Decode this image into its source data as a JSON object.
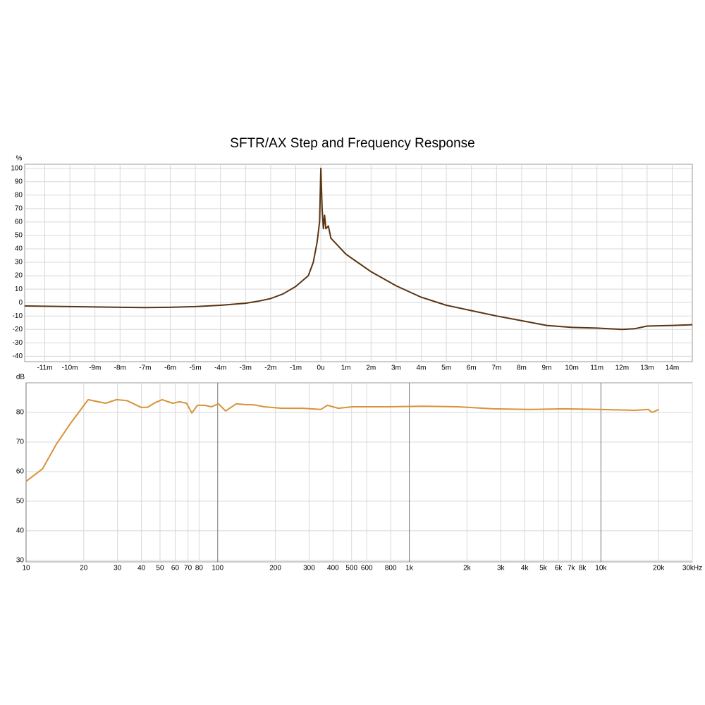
{
  "chart_data": [
    {
      "type": "line",
      "title": "SFTR/AX Step and Frequency Response",
      "ylabel": "%",
      "color": "#5a3413",
      "x": [
        -11.8,
        -10,
        -8,
        -7,
        -6,
        -5,
        -4,
        -3,
        -2.5,
        -2,
        -1.5,
        -1,
        -0.5,
        -0.3,
        -0.15,
        -0.05,
        0,
        0.05,
        0.1,
        0.15,
        0.2,
        0.3,
        0.4,
        0.6,
        1,
        1.5,
        2,
        3,
        4,
        5,
        6,
        7,
        8,
        9,
        10,
        11,
        12,
        12.5,
        13,
        14,
        14.8
      ],
      "values": [
        -2.5,
        -3,
        -3.5,
        -3.7,
        -3.5,
        -3,
        -2,
        -0.5,
        1,
        3,
        6.5,
        12,
        20,
        30,
        45,
        60,
        100,
        70,
        55,
        65,
        55,
        57,
        48,
        44,
        36,
        29.5,
        23,
        12.5,
        4,
        -2,
        -6,
        -10,
        -13.5,
        -17,
        -18.5,
        -19,
        -20,
        -19.5,
        -17.5,
        -17,
        -16.5
      ],
      "xlim": [
        -11.8,
        14.8
      ],
      "xticks": [
        {
          "value": -11,
          "label": "-11m"
        },
        {
          "value": -10,
          "label": "-10m"
        },
        {
          "value": -9,
          "label": "-9m"
        },
        {
          "value": -8,
          "label": "-8m"
        },
        {
          "value": -7,
          "label": "-7m"
        },
        {
          "value": -6,
          "label": "-6m"
        },
        {
          "value": -5,
          "label": "-5m"
        },
        {
          "value": -4,
          "label": "-4m"
        },
        {
          "value": -3,
          "label": "-3m"
        },
        {
          "value": -2,
          "label": "-2m"
        },
        {
          "value": -1,
          "label": "-1m"
        },
        {
          "value": 0,
          "label": "0u"
        },
        {
          "value": 1,
          "label": "1m"
        },
        {
          "value": 2,
          "label": "2m"
        },
        {
          "value": 3,
          "label": "3m"
        },
        {
          "value": 4,
          "label": "4m"
        },
        {
          "value": 5,
          "label": "5m"
        },
        {
          "value": 6,
          "label": "6m"
        },
        {
          "value": 7,
          "label": "7m"
        },
        {
          "value": 8,
          "label": "8m"
        },
        {
          "value": 9,
          "label": "9m"
        },
        {
          "value": 10,
          "label": "10m"
        },
        {
          "value": 11,
          "label": "11m"
        },
        {
          "value": 12,
          "label": "12m"
        },
        {
          "value": 13,
          "label": "13m"
        },
        {
          "value": 14,
          "label": "14m"
        }
      ],
      "ylim": [
        -44,
        103
      ],
      "yticks": [
        100,
        90,
        80,
        70,
        60,
        50,
        40,
        30,
        20,
        10,
        0,
        -10,
        -20,
        -30,
        -40
      ],
      "grid": true
    },
    {
      "type": "line",
      "ylabel": "dB",
      "color": "#d9923a",
      "xscale": "log",
      "x": [
        10,
        12.2,
        14.4,
        17.1,
        21.1,
        26,
        29.6,
        33.6,
        39.8,
        43,
        47.2,
        51.3,
        58.2,
        63.3,
        68.8,
        73.3,
        78.4,
        85.3,
        92.8,
        101,
        110,
        125,
        142,
        154,
        175,
        216,
        278,
        345,
        374,
        426,
        504,
        775,
        1177,
        1800,
        2740,
        4200,
        6400,
        9800,
        15000,
        17700,
        18500,
        20100
      ],
      "values": [
        56.7,
        61,
        69.3,
        76.4,
        84.3,
        83.1,
        84.3,
        84,
        81.7,
        81.7,
        83.3,
        84.3,
        83.1,
        83.6,
        83.1,
        79.8,
        82.4,
        82.4,
        81.9,
        82.9,
        80.5,
        82.9,
        82.6,
        82.6,
        81.9,
        81.4,
        81.4,
        81,
        82.4,
        81.4,
        81.9,
        81.9,
        82.1,
        81.9,
        81.2,
        81,
        81.2,
        81,
        80.7,
        81,
        80,
        81
      ],
      "xlim": [
        10,
        30000
      ],
      "xticks": [
        10,
        20,
        30,
        40,
        50,
        60,
        70,
        80,
        100,
        200,
        300,
        400,
        500,
        600,
        800,
        {
          "value": 1000,
          "label": "1k"
        },
        {
          "value": 2000,
          "label": "2k"
        },
        {
          "value": 3000,
          "label": "3k"
        },
        {
          "value": 4000,
          "label": "4k"
        },
        {
          "value": 5000,
          "label": "5k"
        },
        {
          "value": 6000,
          "label": "6k"
        },
        {
          "value": 7000,
          "label": "7k"
        },
        {
          "value": 8000,
          "label": "8k"
        },
        {
          "value": 10000,
          "label": "10k"
        },
        {
          "value": 20000,
          "label": "20k"
        },
        {
          "value": 30000,
          "label": "30kHz"
        }
      ],
      "ylim": [
        29.5,
        90
      ],
      "yticks": [
        80,
        70,
        60,
        50,
        40,
        30
      ],
      "grid": true
    }
  ]
}
